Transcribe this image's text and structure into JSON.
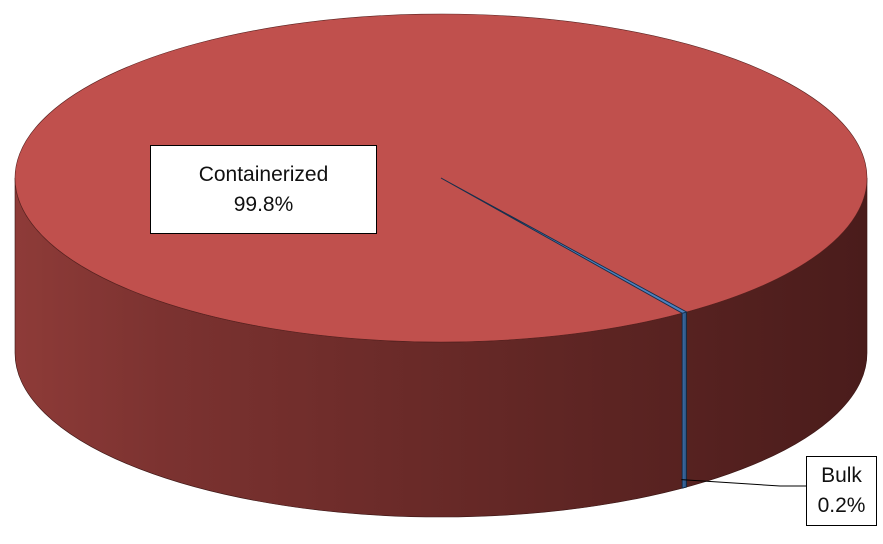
{
  "chart_data": {
    "type": "pie",
    "style": "3d",
    "categories": [
      "Containerized",
      "Bulk"
    ],
    "values": [
      99.8,
      0.2
    ],
    "data_labels": [
      {
        "category": "Containerized",
        "value": "99.8%"
      },
      {
        "category": "Bulk",
        "value": "0.2%"
      }
    ],
    "colors": [
      "#C0504D",
      "#4F81BD"
    ],
    "title": "",
    "legend": "none",
    "grid": false
  }
}
